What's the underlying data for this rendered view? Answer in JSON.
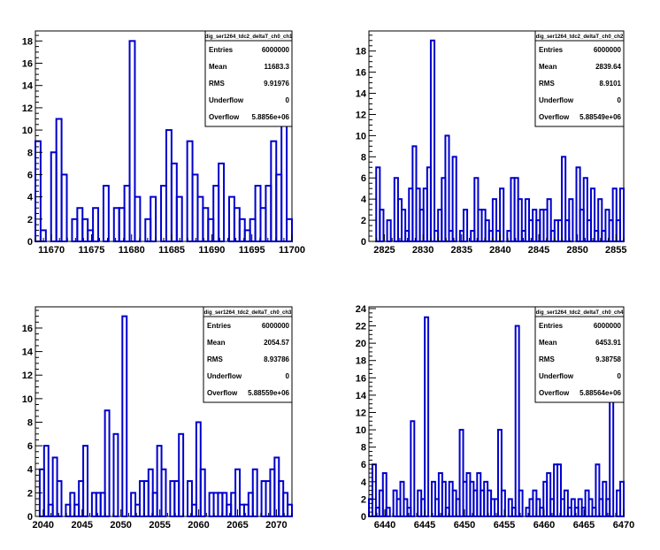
{
  "canvas": {
    "background": "#ffffff",
    "line_color": "#0000cc"
  },
  "chart_data": [
    {
      "type": "bar",
      "histogram": "step",
      "title": "dig_ser1264_tdc2_deltaT_ch0_ch1",
      "xlim": [
        11668,
        11700
      ],
      "ylim": [
        0,
        18.9
      ],
      "x_ticks": [
        11670,
        11675,
        11680,
        11685,
        11690,
        11695,
        11700
      ],
      "y_ticks": [
        0,
        2,
        4,
        6,
        8,
        10,
        12,
        14,
        16,
        18
      ],
      "values": [
        9,
        1,
        0,
        8,
        11,
        6,
        0,
        2,
        3,
        2,
        1,
        3,
        0,
        5,
        0,
        3,
        3,
        5,
        18,
        4,
        0,
        2,
        4,
        0,
        5,
        10,
        7,
        4,
        0,
        9,
        6,
        4,
        3,
        2,
        5,
        7,
        0,
        4,
        3,
        2,
        1,
        2,
        5,
        3,
        5,
        9,
        6,
        14,
        2
      ],
      "stats": {
        "title": "dig_ser1264_tdc2_deltaT_ch0_ch1",
        "rows": [
          {
            "label": "Entries",
            "value": "6000000"
          },
          {
            "label": "Mean",
            "value": "11683.3"
          },
          {
            "label": "RMS",
            "value": "9.91976"
          },
          {
            "label": "Underflow",
            "value": "0"
          },
          {
            "label": "Overflow",
            "value": "5.8856e+06"
          }
        ]
      }
    },
    {
      "type": "bar",
      "histogram": "step",
      "title": "dig_ser1264_tdc2_deltaT_ch0_ch2",
      "xlim": [
        2823,
        2856
      ],
      "ylim": [
        0,
        19.9
      ],
      "x_ticks": [
        2825,
        2830,
        2835,
        2840,
        2845,
        2850,
        2855
      ],
      "y_ticks": [
        0,
        2,
        4,
        6,
        8,
        10,
        12,
        14,
        16,
        18
      ],
      "values": [
        0,
        0,
        7,
        3,
        0,
        2,
        0,
        6,
        4,
        3,
        1,
        5,
        9,
        5,
        3,
        5,
        7,
        19,
        1,
        3,
        6,
        10,
        1,
        8,
        0,
        1,
        3,
        0,
        1,
        6,
        3,
        3,
        2,
        1,
        4,
        1,
        5,
        0,
        1,
        6,
        6,
        4,
        1,
        4,
        2,
        3,
        2,
        3,
        3,
        4,
        1,
        2,
        2,
        8,
        2,
        4,
        0,
        7,
        3,
        6,
        2,
        5,
        1,
        4,
        1,
        3,
        2,
        5,
        2,
        5
      ],
      "stats": {
        "title": "dig_ser1264_tdc2_deltaT_ch0_ch2",
        "rows": [
          {
            "label": "Entries",
            "value": "6000000"
          },
          {
            "label": "Mean",
            "value": "2839.64"
          },
          {
            "label": "RMS",
            "value": "8.9101"
          },
          {
            "label": "Underflow",
            "value": "0"
          },
          {
            "label": "Overflow",
            "value": "5.88549e+06"
          }
        ]
      }
    },
    {
      "type": "bar",
      "histogram": "step",
      "title": "dig_ser1264_tdc2_deltaT_ch0_ch3",
      "xlim": [
        2039,
        2072
      ],
      "ylim": [
        0,
        17.8
      ],
      "x_ticks": [
        2040,
        2045,
        2050,
        2055,
        2060,
        2065,
        2070
      ],
      "y_ticks": [
        0,
        2,
        4,
        6,
        8,
        10,
        12,
        14,
        16
      ],
      "values": [
        0,
        4,
        6,
        1,
        5,
        3,
        0,
        1,
        2,
        1,
        3,
        6,
        0,
        2,
        2,
        2,
        9,
        0,
        7,
        0,
        17,
        0,
        2,
        1,
        3,
        3,
        4,
        2,
        6,
        4,
        0,
        3,
        3,
        7,
        0,
        3,
        1,
        8,
        4,
        0,
        2,
        2,
        2,
        2,
        1,
        2,
        4,
        1,
        1,
        2,
        4,
        0,
        3,
        3,
        4,
        5,
        3,
        2,
        1
      ],
      "stats": {
        "title": "dig_ser1264_tdc2_deltaT_ch0_ch3",
        "rows": [
          {
            "label": "Entries",
            "value": "6000000"
          },
          {
            "label": "Mean",
            "value": "2054.57"
          },
          {
            "label": "RMS",
            "value": "8.93786"
          },
          {
            "label": "Underflow",
            "value": "0"
          },
          {
            "label": "Overflow",
            "value": "5.88559e+06"
          }
        ]
      }
    },
    {
      "type": "bar",
      "histogram": "step",
      "title": "dig_ser1264_tdc2_deltaT_ch0_ch4",
      "xlim": [
        6438,
        6470
      ],
      "ylim": [
        0,
        24.2
      ],
      "x_ticks": [
        6440,
        6445,
        6450,
        6455,
        6460,
        6465,
        6470
      ],
      "y_ticks": [
        0,
        2,
        4,
        6,
        8,
        10,
        12,
        14,
        16,
        18,
        20,
        22,
        24
      ],
      "values": [
        2,
        6,
        1,
        3,
        5,
        1,
        0,
        3,
        2,
        4,
        2,
        1,
        11,
        0,
        3,
        2,
        23,
        0,
        4,
        2,
        5,
        4,
        1,
        4,
        3,
        2,
        10,
        4,
        5,
        4,
        3,
        5,
        3,
        4,
        3,
        2,
        2,
        10,
        3,
        0,
        2,
        1,
        22,
        3,
        0,
        1,
        2,
        3,
        2,
        1,
        4,
        5,
        2,
        6,
        6,
        2,
        3,
        1,
        2,
        1,
        2,
        1,
        3,
        2,
        1,
        6,
        2,
        4,
        2,
        20,
        0,
        3,
        4
      ],
      "stats": {
        "title": "dig_ser1264_tdc2_deltaT_ch0_ch4",
        "rows": [
          {
            "label": "Entries",
            "value": "6000000"
          },
          {
            "label": "Mean",
            "value": "6453.91"
          },
          {
            "label": "RMS",
            "value": "9.38758"
          },
          {
            "label": "Underflow",
            "value": "0"
          },
          {
            "label": "Overflow",
            "value": "5.88564e+06"
          }
        ]
      }
    }
  ]
}
